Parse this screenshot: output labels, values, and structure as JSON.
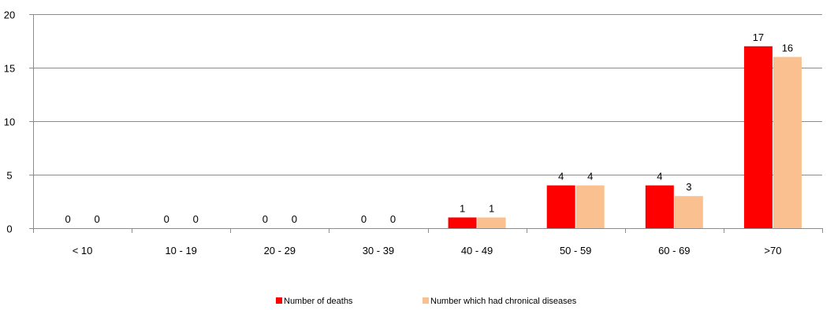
{
  "chart_data": {
    "type": "bar",
    "title": "",
    "xlabel": "",
    "ylabel": "",
    "categories": [
      "< 10",
      "10 - 19",
      "20 - 29",
      "30 - 39",
      "40 - 49",
      "50 - 59",
      "60 - 69",
      ">70"
    ],
    "series": [
      {
        "name": "Number of deaths",
        "values": [
          0,
          0,
          0,
          0,
          1,
          4,
          4,
          17
        ],
        "color": "#ff0000"
      },
      {
        "name": "Number which had chronical diseases",
        "values": [
          0,
          0,
          0,
          0,
          1,
          4,
          3,
          16
        ],
        "color": "#fac090"
      }
    ],
    "ylim": [
      0,
      20
    ],
    "yticks": [
      0,
      5,
      10,
      15,
      20
    ],
    "grid": true,
    "data_labels": true,
    "legend_position": "bottom"
  }
}
